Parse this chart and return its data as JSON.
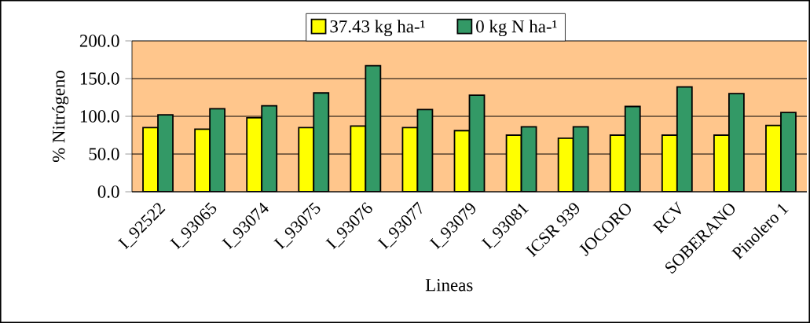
{
  "chart_data": {
    "type": "bar",
    "xlabel": "Lineas",
    "ylabel": "% Nitrógeno",
    "categories": [
      "I_92522",
      "I_93065",
      "I_93074",
      "I_93075",
      "I_93076",
      "I_93077",
      "I_93079",
      "I_93081",
      "ICSR 939",
      "JOCORO",
      "RCV",
      "SOBERANO",
      "Pinolero 1"
    ],
    "series": [
      {
        "name": "37.43 kg ha-¹",
        "color": "#ffff00",
        "values": [
          85,
          83,
          98,
          85,
          87,
          85,
          81,
          75,
          71,
          75,
          75,
          75,
          88
        ]
      },
      {
        "name": "0 kg N ha-¹",
        "color": "#339966",
        "values": [
          102,
          110,
          114,
          131,
          167,
          109,
          128,
          86,
          86,
          113,
          139,
          130,
          105
        ]
      }
    ],
    "ylim": [
      0,
      200
    ],
    "yticks": [
      {
        "value": 0,
        "label": "0.0"
      },
      {
        "value": 50,
        "label": "50.0"
      },
      {
        "value": 100,
        "label": "100.0"
      },
      {
        "value": 150,
        "label": "150.0"
      },
      {
        "value": 200,
        "label": "200.0"
      }
    ],
    "grid": "y",
    "legend": "top"
  }
}
